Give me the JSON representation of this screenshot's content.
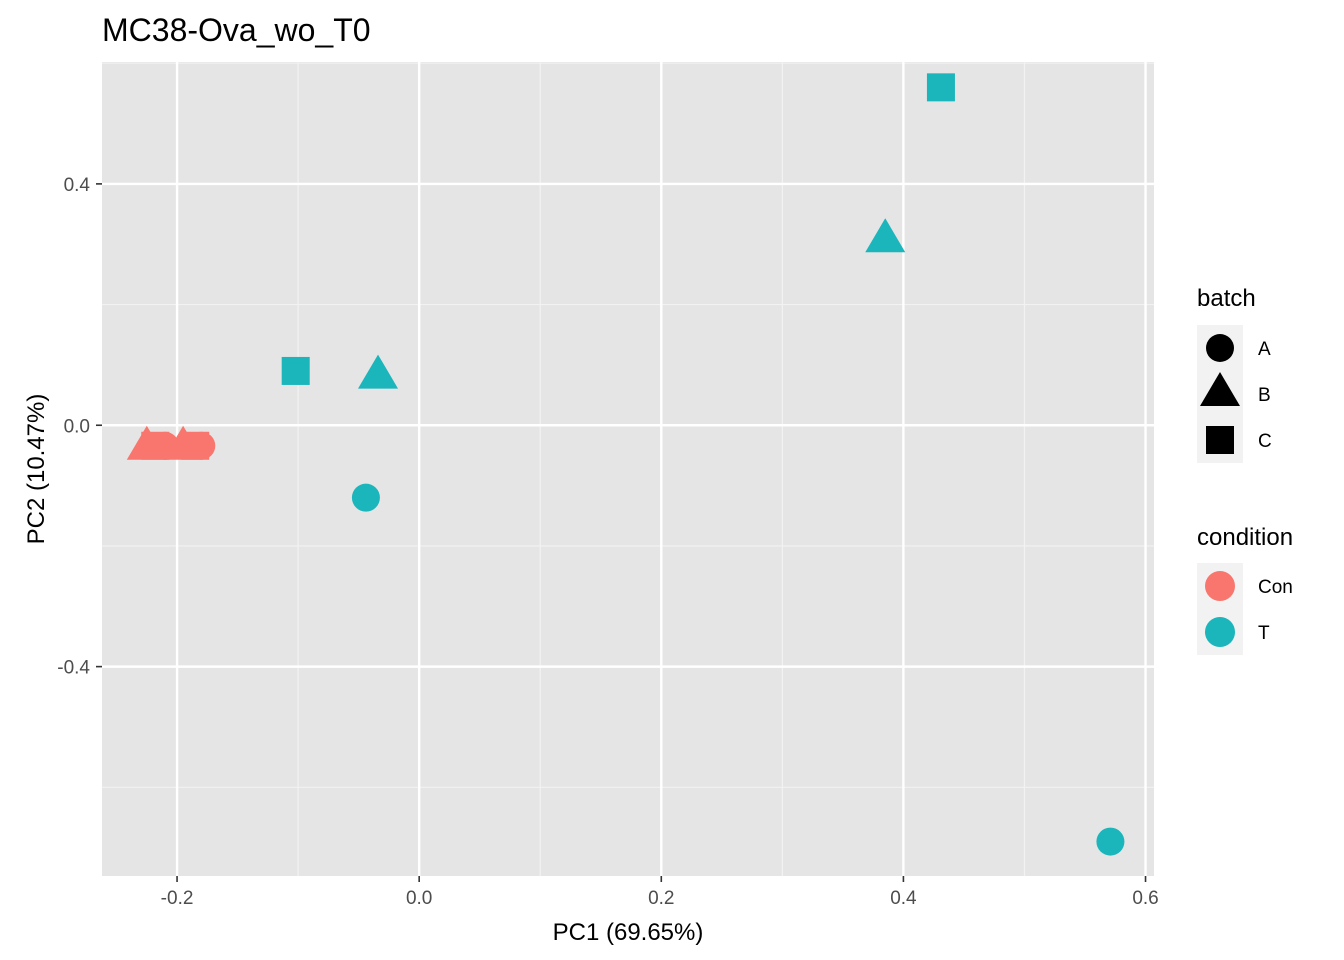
{
  "chart_data": {
    "type": "scatter",
    "title": "MC38-Ova_wo_T0",
    "xlabel": "PC1 (69.65%)",
    "ylabel": "PC2 (10.47%)",
    "xlim": [
      -0.262,
      0.607
    ],
    "ylim": [
      -0.747,
      0.602
    ],
    "x_ticks": [
      -0.2,
      0.0,
      0.2,
      0.4,
      0.6
    ],
    "x_tick_labels": [
      "-0.2",
      "0.0",
      "0.2",
      "0.4",
      "0.6"
    ],
    "y_ticks": [
      -0.4,
      0.0,
      0.4
    ],
    "y_tick_labels": [
      "-0.4",
      "0.0",
      "0.4"
    ],
    "grid": true,
    "legend_position": "right",
    "legends": {
      "batch": {
        "title": "batch",
        "entries": [
          {
            "label": "A",
            "shape": "circle"
          },
          {
            "label": "B",
            "shape": "triangle"
          },
          {
            "label": "C",
            "shape": "square"
          }
        ]
      },
      "condition": {
        "title": "condition",
        "entries": [
          {
            "label": "Con",
            "color": "#F8766D"
          },
          {
            "label": "T",
            "color": "#00BFC4"
          }
        ]
      }
    },
    "colors": {
      "Con": "#F8766D",
      "T": "#1BB5BC"
    },
    "points": [
      {
        "x": -0.225,
        "y": -0.034,
        "batch": "B",
        "condition": "Con"
      },
      {
        "x": -0.218,
        "y": -0.034,
        "batch": "C",
        "condition": "Con"
      },
      {
        "x": -0.21,
        "y": -0.034,
        "batch": "A",
        "condition": "Con"
      },
      {
        "x": -0.195,
        "y": -0.034,
        "batch": "B",
        "condition": "Con"
      },
      {
        "x": -0.185,
        "y": -0.034,
        "batch": "C",
        "condition": "Con"
      },
      {
        "x": -0.18,
        "y": -0.034,
        "batch": "A",
        "condition": "Con"
      },
      {
        "x": -0.102,
        "y": 0.09,
        "batch": "C",
        "condition": "T"
      },
      {
        "x": -0.034,
        "y": 0.084,
        "batch": "B",
        "condition": "T"
      },
      {
        "x": -0.044,
        "y": -0.12,
        "batch": "A",
        "condition": "T"
      },
      {
        "x": 0.385,
        "y": 0.31,
        "batch": "B",
        "condition": "T"
      },
      {
        "x": 0.431,
        "y": 0.56,
        "batch": "C",
        "condition": "T"
      },
      {
        "x": 0.571,
        "y": -0.69,
        "batch": "A",
        "condition": "T"
      }
    ]
  }
}
